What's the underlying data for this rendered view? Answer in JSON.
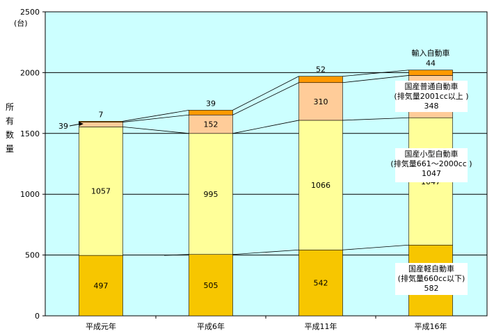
{
  "chart_data": {
    "type": "bar",
    "stacked": true,
    "categories": [
      "平成元年",
      "平成6年",
      "平成11年",
      "平成16年"
    ],
    "ylim": [
      0,
      2500
    ],
    "yticks": [
      0,
      500,
      1000,
      1500,
      2000,
      2500
    ],
    "y_unit": "(台)",
    "ylabel": "所有数量",
    "grid": true,
    "series": [
      {
        "name": "国産軽自動車（排気量660cc以下）",
        "label_lines": [
          "国産軽自動車",
          "(排気量660cc以下)"
        ],
        "color": "#F7C600",
        "values": [
          497,
          505,
          542,
          582
        ]
      },
      {
        "name": "国産小型自動車（排気量661～2000cc）",
        "label_lines": [
          "国産小型自動車",
          "(排気量661～2000cc )"
        ],
        "color": "#FFFF99",
        "values": [
          1057,
          995,
          1066,
          1047
        ]
      },
      {
        "name": "国産普通自動車（排気量2001cc以上）",
        "label_lines": [
          "国産普通自動車",
          "(排気量2001cc以上 )"
        ],
        "color": "#FFCC99",
        "values": [
          39,
          152,
          310,
          348
        ]
      },
      {
        "name": "輸入自動車",
        "label_lines": [
          "輸入自動車"
        ],
        "color": "#FF9900",
        "values": [
          7,
          39,
          52,
          44
        ]
      }
    ],
    "plot_background": "#CCFFFF"
  }
}
